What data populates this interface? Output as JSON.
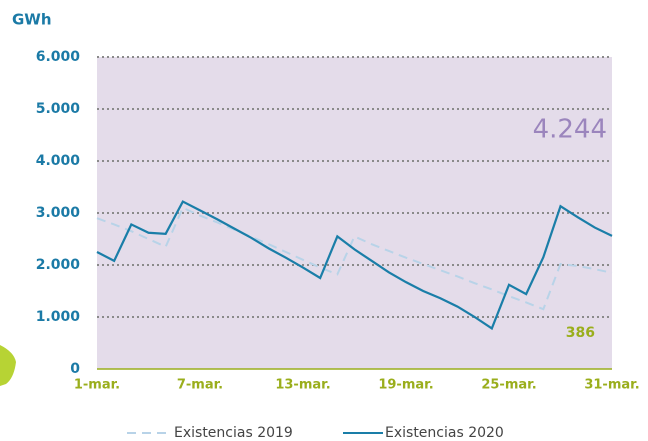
{
  "chart_data": {
    "type": "line",
    "y_label": "GWh",
    "categories": [
      "1-mar.",
      null,
      null,
      null,
      null,
      null,
      "7-mar.",
      null,
      null,
      null,
      null,
      null,
      "13-mar.",
      null,
      null,
      null,
      null,
      null,
      "19-mar.",
      null,
      null,
      null,
      null,
      null,
      "25-mar.",
      null,
      null,
      null,
      null,
      null,
      "31-mar."
    ],
    "series": [
      {
        "name": "Existencias 2019",
        "color": "#b8d3e8",
        "dash": true,
        "values": [
          2900,
          2780,
          2650,
          2500,
          2350,
          3100,
          2950,
          2820,
          2680,
          2540,
          2400,
          2250,
          2100,
          1950,
          1820,
          2550,
          2400,
          2270,
          2140,
          2020,
          1900,
          1780,
          1650,
          1530,
          1400,
          1280,
          1150,
          2020,
          1980,
          1920,
          1850
        ]
      },
      {
        "name": "Existencias 2020",
        "color": "#1a7ea8",
        "dash": false,
        "values": [
          2250,
          2080,
          2780,
          2620,
          2600,
          3220,
          3050,
          2880,
          2700,
          2520,
          2320,
          2140,
          1950,
          1750,
          2550,
          2300,
          2080,
          1860,
          1670,
          1500,
          1360,
          1200,
          1000,
          780,
          1620,
          1440,
          2150,
          3130,
          2920,
          2720,
          2560
        ]
      }
    ],
    "ylim": [
      0,
      6000
    ],
    "yticks": [
      0,
      {
        "value": 1000,
        "label": "1.000"
      },
      {
        "value": 2000,
        "label": "2.000"
      },
      {
        "value": 3000,
        "label": "3.000"
      },
      {
        "value": 4000,
        "label": "4.000"
      },
      {
        "value": 5000,
        "label": "5.000"
      },
      {
        "value": 6000,
        "label": "6.000"
      }
    ],
    "grid": true,
    "annotations": [
      "4.244",
      "386"
    ]
  }
}
